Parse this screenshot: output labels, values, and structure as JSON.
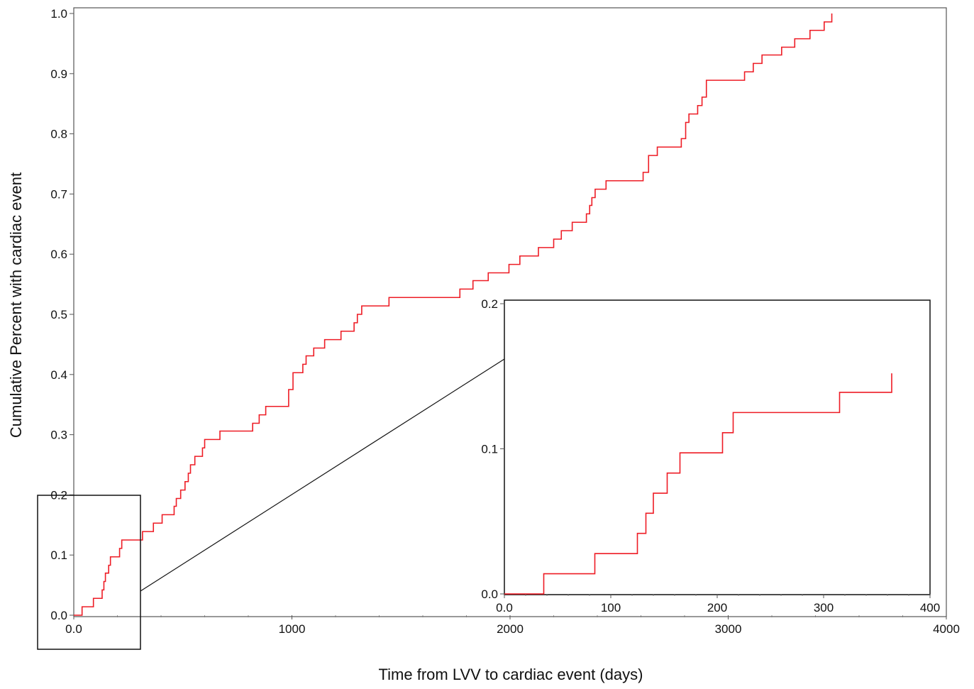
{
  "chart_data": [
    {
      "type": "line",
      "step": true,
      "xlabel": "Time from LVV to cardiac event (days)",
      "ylabel": "Cumulative Percent with cardiac event",
      "xlim": [
        0,
        4000
      ],
      "ylim": [
        0,
        1.0
      ],
      "x_ticks": [
        0,
        1000,
        2000,
        3000,
        4000
      ],
      "x_tick_labels": [
        "0.0",
        "1000",
        "2000",
        "3000",
        "4000"
      ],
      "y_ticks": [
        0,
        0.1,
        0.2,
        0.3,
        0.4,
        0.5,
        0.6,
        0.7,
        0.8,
        0.9,
        1.0
      ],
      "y_tick_labels": [
        "0.0",
        "0.1",
        "0.2",
        "0.3",
        "0.4",
        "0.5",
        "0.6",
        "0.7",
        "0.8",
        "0.9",
        "1.0"
      ],
      "grid": false,
      "series": [
        {
          "color": "#ee1c25",
          "points": [
            [
              0,
              0.0
            ],
            [
              38,
              0.014
            ],
            [
              90,
              0.028
            ],
            [
              130,
              0.042
            ],
            [
              138,
              0.056
            ],
            [
              145,
              0.07
            ],
            [
              160,
              0.083
            ],
            [
              168,
              0.097
            ],
            [
              210,
              0.111
            ],
            [
              220,
              0.125
            ],
            [
              315,
              0.139
            ],
            [
              365,
              0.153
            ],
            [
              405,
              0.167
            ],
            [
              460,
              0.181
            ],
            [
              470,
              0.194
            ],
            [
              490,
              0.208
            ],
            [
              510,
              0.222
            ],
            [
              525,
              0.236
            ],
            [
              535,
              0.25
            ],
            [
              555,
              0.264
            ],
            [
              590,
              0.278
            ],
            [
              600,
              0.292
            ],
            [
              670,
              0.306
            ],
            [
              820,
              0.319
            ],
            [
              850,
              0.333
            ],
            [
              880,
              0.347
            ],
            [
              985,
              0.375
            ],
            [
              1005,
              0.403
            ],
            [
              1050,
              0.417
            ],
            [
              1065,
              0.431
            ],
            [
              1100,
              0.444
            ],
            [
              1150,
              0.458
            ],
            [
              1225,
              0.472
            ],
            [
              1285,
              0.486
            ],
            [
              1300,
              0.5
            ],
            [
              1320,
              0.514
            ],
            [
              1445,
              0.528
            ],
            [
              1770,
              0.542
            ],
            [
              1830,
              0.556
            ],
            [
              1900,
              0.569
            ],
            [
              1995,
              0.583
            ],
            [
              2045,
              0.597
            ],
            [
              2130,
              0.611
            ],
            [
              2200,
              0.625
            ],
            [
              2235,
              0.639
            ],
            [
              2285,
              0.653
            ],
            [
              2350,
              0.667
            ],
            [
              2365,
              0.681
            ],
            [
              2375,
              0.694
            ],
            [
              2390,
              0.708
            ],
            [
              2440,
              0.722
            ],
            [
              2610,
              0.736
            ],
            [
              2635,
              0.764
            ],
            [
              2675,
              0.778
            ],
            [
              2785,
              0.792
            ],
            [
              2805,
              0.819
            ],
            [
              2820,
              0.833
            ],
            [
              2860,
              0.847
            ],
            [
              2880,
              0.861
            ],
            [
              2900,
              0.889
            ],
            [
              3075,
              0.903
            ],
            [
              3115,
              0.917
            ],
            [
              3155,
              0.931
            ],
            [
              3245,
              0.944
            ],
            [
              3305,
              0.958
            ],
            [
              3375,
              0.972
            ],
            [
              3440,
              0.986
            ],
            [
              3475,
              1.0
            ]
          ]
        }
      ]
    },
    {
      "type": "line",
      "step": true,
      "inset": true,
      "xlim": [
        0,
        400
      ],
      "ylim": [
        0,
        0.2
      ],
      "x_ticks": [
        0,
        100,
        200,
        300,
        400
      ],
      "x_tick_labels": [
        "0.0",
        "100",
        "200",
        "300",
        "400"
      ],
      "y_ticks": [
        0,
        0.1,
        0.2
      ],
      "y_tick_labels": [
        "0.0",
        "0.1",
        "0.2"
      ],
      "grid": false,
      "series": [
        {
          "color": "#ee1c25",
          "points": [
            [
              0,
              0.0
            ],
            [
              37,
              0.0139
            ],
            [
              85,
              0.0278
            ],
            [
              125,
              0.0417
            ],
            [
              133,
              0.0556
            ],
            [
              140,
              0.0694
            ],
            [
              153,
              0.0833
            ],
            [
              165,
              0.0972
            ],
            [
              205,
              0.1111
            ],
            [
              215,
              0.125
            ],
            [
              315,
              0.1389
            ],
            [
              364,
              0.1389
            ],
            [
              364,
              0.152
            ]
          ]
        }
      ]
    }
  ]
}
